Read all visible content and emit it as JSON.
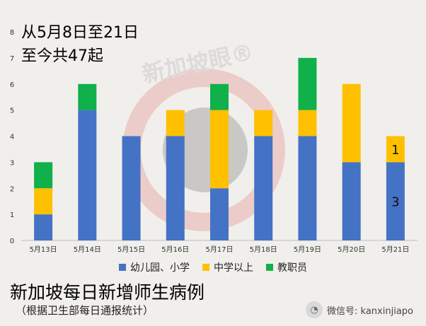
{
  "header": {
    "line1": "从5月8日至21日",
    "line2": "至今共47起"
  },
  "title": "新加坡每日新增师生病例",
  "source_note": "（根据卫生部每日通报统计）",
  "wechat": {
    "label": "微信号: kanxinjiapo"
  },
  "watermark": "新加坡眼®",
  "chart_data": {
    "type": "bar",
    "stacked": true,
    "categories": [
      "5月13日",
      "5月14日",
      "5月15日",
      "5月16日",
      "5月17日",
      "5月18日",
      "5月19日",
      "5月20日",
      "5月21日"
    ],
    "series": [
      {
        "name": "幼儿园、小学",
        "color": "#4472c4",
        "values": [
          1,
          5,
          4,
          4,
          2,
          4,
          4,
          3,
          3
        ]
      },
      {
        "name": "中学以上",
        "color": "#ffc000",
        "values": [
          1,
          0,
          0,
          1,
          3,
          1,
          1,
          3,
          1
        ]
      },
      {
        "name": "教职员",
        "color": "#10b04a",
        "values": [
          1,
          1,
          0,
          0,
          1,
          0,
          2,
          0,
          0
        ]
      }
    ],
    "ylim": [
      0,
      8
    ],
    "yticks": [
      0,
      1,
      2,
      3,
      4,
      5,
      6,
      7,
      8
    ],
    "annotations": [
      {
        "category": "5月21日",
        "series": "幼儿园、小学",
        "text": "3"
      },
      {
        "category": "5月21日",
        "series": "中学以上",
        "text": "1"
      }
    ],
    "legend_position": "bottom",
    "grid": false
  }
}
